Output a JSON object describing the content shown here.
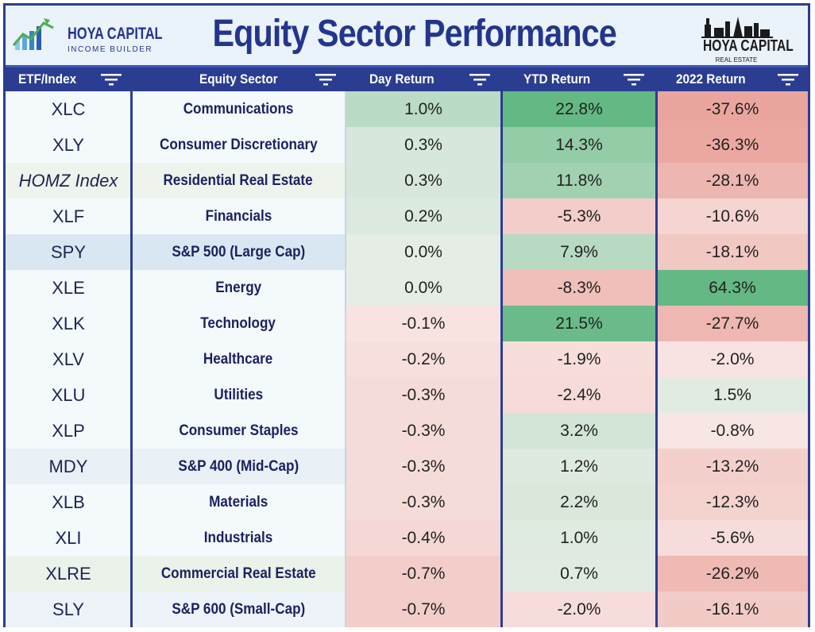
{
  "header": {
    "title": "Equity Sector Performance",
    "logo_left_line1": "HOYA CAPITAL",
    "logo_left_line2": "INCOME BUILDER",
    "logo_right_line1": "HOYA CAPITAL",
    "logo_right_line2": "REAL ESTATE"
  },
  "colors": {
    "header_bar": "#2b3d91",
    "title": "#23358c",
    "positive": "#63b883",
    "negative": "#e0786c",
    "neutral": "#fbf6f6"
  },
  "chart_data": {
    "type": "table",
    "title": "Equity Sector Performance",
    "columns": [
      "ETF/Index",
      "Equity Sector",
      "Day Return",
      "YTD Return",
      "2022 Return"
    ],
    "rows": [
      {
        "ticker": "XLC",
        "sector": "Communications",
        "day": "1.0%",
        "ytd": "22.8%",
        "y2022": "-37.6%",
        "day_v": 1.0,
        "ytd_v": 22.8,
        "y2022_v": -37.6
      },
      {
        "ticker": "XLY",
        "sector": "Consumer Discretionary",
        "day": "0.3%",
        "ytd": "14.3%",
        "y2022": "-36.3%",
        "day_v": 0.3,
        "ytd_v": 14.3,
        "y2022_v": -36.3
      },
      {
        "ticker": "HOMZ Index",
        "sector": "Residential Real Estate",
        "day": "0.3%",
        "ytd": "11.8%",
        "y2022": "-28.1%",
        "day_v": 0.3,
        "ytd_v": 11.8,
        "y2022_v": -28.1
      },
      {
        "ticker": "XLF",
        "sector": "Financials",
        "day": "0.2%",
        "ytd": "-5.3%",
        "y2022": "-10.6%",
        "day_v": 0.2,
        "ytd_v": -5.3,
        "y2022_v": -10.6
      },
      {
        "ticker": "SPY",
        "sector": "S&P 500 (Large Cap)",
        "day": "0.0%",
        "ytd": "7.9%",
        "y2022": "-18.1%",
        "day_v": 0.0,
        "ytd_v": 7.9,
        "y2022_v": -18.1
      },
      {
        "ticker": "XLE",
        "sector": "Energy",
        "day": "0.0%",
        "ytd": "-8.3%",
        "y2022": "64.3%",
        "day_v": 0.0,
        "ytd_v": -8.3,
        "y2022_v": 64.3
      },
      {
        "ticker": "XLK",
        "sector": "Technology",
        "day": "-0.1%",
        "ytd": "21.5%",
        "y2022": "-27.7%",
        "day_v": -0.1,
        "ytd_v": 21.5,
        "y2022_v": -27.7
      },
      {
        "ticker": "XLV",
        "sector": "Healthcare",
        "day": "-0.2%",
        "ytd": "-1.9%",
        "y2022": "-2.0%",
        "day_v": -0.2,
        "ytd_v": -1.9,
        "y2022_v": -2.0
      },
      {
        "ticker": "XLU",
        "sector": "Utilities",
        "day": "-0.3%",
        "ytd": "-2.4%",
        "y2022": "1.5%",
        "day_v": -0.3,
        "ytd_v": -2.4,
        "y2022_v": 1.5
      },
      {
        "ticker": "XLP",
        "sector": "Consumer Staples",
        "day": "-0.3%",
        "ytd": "3.2%",
        "y2022": "-0.8%",
        "day_v": -0.3,
        "ytd_v": 3.2,
        "y2022_v": -0.8
      },
      {
        "ticker": "MDY",
        "sector": "S&P 400 (Mid-Cap)",
        "day": "-0.3%",
        "ytd": "1.2%",
        "y2022": "-13.2%",
        "day_v": -0.3,
        "ytd_v": 1.2,
        "y2022_v": -13.2
      },
      {
        "ticker": "XLB",
        "sector": "Materials",
        "day": "-0.3%",
        "ytd": "2.2%",
        "y2022": "-12.3%",
        "day_v": -0.3,
        "ytd_v": 2.2,
        "y2022_v": -12.3
      },
      {
        "ticker": "XLI",
        "sector": "Industrials",
        "day": "-0.4%",
        "ytd": "1.0%",
        "y2022": "-5.6%",
        "day_v": -0.4,
        "ytd_v": 1.0,
        "y2022_v": -5.6
      },
      {
        "ticker": "XLRE",
        "sector": "Commercial Real Estate",
        "day": "-0.7%",
        "ytd": "0.7%",
        "y2022": "-26.2%",
        "day_v": -0.7,
        "ytd_v": 0.7,
        "y2022_v": -26.2
      },
      {
        "ticker": "SLY",
        "sector": "S&P 600 (Small-Cap)",
        "day": "-0.7%",
        "ytd": "-2.0%",
        "y2022": "-16.1%",
        "day_v": -0.7,
        "ytd_v": -2.0,
        "y2022_v": -16.1
      }
    ]
  }
}
